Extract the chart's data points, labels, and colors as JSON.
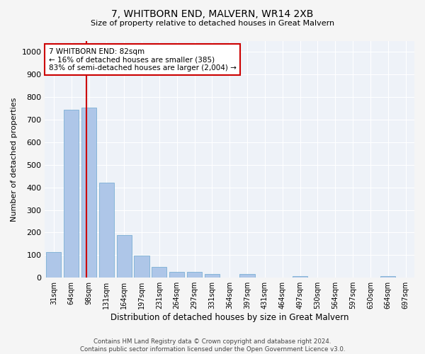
{
  "title": "7, WHITBORN END, MALVERN, WR14 2XB",
  "subtitle": "Size of property relative to detached houses in Great Malvern",
  "xlabel": "Distribution of detached houses by size in Great Malvern",
  "ylabel": "Number of detached properties",
  "categories": [
    "31sqm",
    "64sqm",
    "98sqm",
    "131sqm",
    "164sqm",
    "197sqm",
    "231sqm",
    "264sqm",
    "297sqm",
    "331sqm",
    "364sqm",
    "397sqm",
    "431sqm",
    "464sqm",
    "497sqm",
    "530sqm",
    "564sqm",
    "597sqm",
    "630sqm",
    "664sqm",
    "697sqm"
  ],
  "values": [
    113,
    743,
    755,
    420,
    188,
    97,
    48,
    25,
    25,
    17,
    0,
    15,
    0,
    0,
    8,
    0,
    0,
    0,
    0,
    8,
    0
  ],
  "bar_color": "#aec6e8",
  "bar_edge_color": "#7bafd4",
  "vline_x": 1.85,
  "vline_color": "#cc0000",
  "annotation_text": "7 WHITBORN END: 82sqm\n← 16% of detached houses are smaller (385)\n83% of semi-detached houses are larger (2,004) →",
  "annotation_box_color": "#ffffff",
  "annotation_box_edge": "#cc0000",
  "ylim": [
    0,
    1050
  ],
  "yticks": [
    0,
    100,
    200,
    300,
    400,
    500,
    600,
    700,
    800,
    900,
    1000
  ],
  "bg_color": "#eef2f8",
  "grid_color": "#ffffff",
  "fig_bg": "#f5f5f5",
  "footer_line1": "Contains HM Land Registry data © Crown copyright and database right 2024.",
  "footer_line2": "Contains public sector information licensed under the Open Government Licence v3.0."
}
